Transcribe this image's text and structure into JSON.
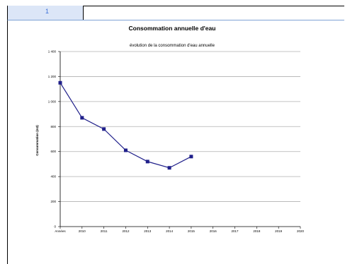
{
  "tab": {
    "label": "1"
  },
  "chart_data": {
    "type": "line",
    "title": "Consommation annuelle d'eau",
    "subtitle": "évolution de la consommation d'eau annuelle",
    "ylabel": "Consommation (m3)",
    "xlabel": "",
    "categories": [
      "Années",
      "2010",
      "2011",
      "2012",
      "2013",
      "2014",
      "2015",
      "2016",
      "2017",
      "2018",
      "2019",
      "2020"
    ],
    "y_ticks": [
      "0",
      "200",
      "400",
      "600",
      "800",
      "1 000",
      "1 200",
      "1 400"
    ],
    "ylim": [
      0,
      1400
    ],
    "series": [
      {
        "values": [
          1150,
          870,
          780,
          610,
          520,
          470,
          560,
          null,
          null,
          null,
          null,
          null
        ]
      }
    ],
    "grid": true,
    "colors": {
      "line": "#1f1f8a",
      "marker": "#1f1f8a",
      "grid": "#b0b0b0"
    }
  }
}
